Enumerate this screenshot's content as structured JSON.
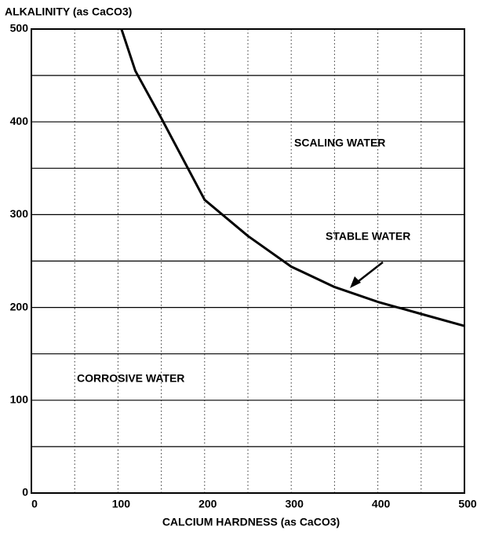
{
  "chart_data": {
    "type": "line",
    "title": "ALKALINITY (as CaCO3)",
    "x_label": "CALCIUM HARDNESS (as CaCO3)",
    "x": [
      104,
      120,
      150,
      200,
      250,
      300,
      350,
      400,
      450,
      500
    ],
    "series": [
      {
        "name": "STABLE WATER",
        "color": "#000000",
        "values": [
          500,
          455,
          404,
          316,
          277,
          244,
          222,
          206,
          193,
          180
        ]
      }
    ],
    "xlim": [
      0,
      500
    ],
    "ylim": [
      0,
      500
    ],
    "xticks": [
      0,
      100,
      200,
      300,
      400,
      500
    ],
    "yticks": [
      0,
      100,
      200,
      300,
      400,
      500
    ],
    "minor_xticks": [
      50,
      150,
      250,
      350,
      450
    ],
    "minor_yticks": [
      50,
      150,
      250,
      350,
      450
    ],
    "grid": true,
    "annotations": [
      "SCALING WATER",
      "STABLE WATER",
      "CORROSIVE WATER"
    ]
  }
}
